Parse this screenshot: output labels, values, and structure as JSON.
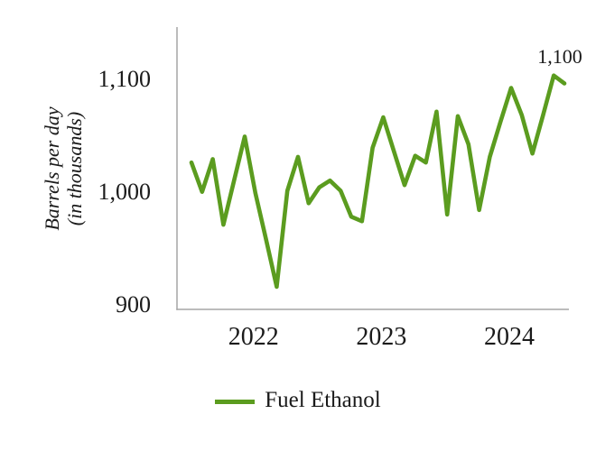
{
  "chart_data": {
    "type": "line",
    "title": "",
    "ylabel_lines": [
      "Barrels per day",
      "(in thousands)"
    ],
    "xlabel": "",
    "x": [
      "Jul 2021",
      "Aug 2021",
      "Sep 2021",
      "Oct 2021",
      "Nov 2021",
      "Dec 2021",
      "Jan 2022",
      "Feb 2022",
      "Mar 2022",
      "Apr 2022",
      "May 2022",
      "Jun 2022",
      "Jul 2022",
      "Aug 2022",
      "Sep 2022",
      "Oct 2022",
      "Nov 2022",
      "Dec 2022",
      "Jan 2023",
      "Feb 2023",
      "Mar 2023",
      "Apr 2023",
      "May 2023",
      "Jun 2023",
      "Jul 2023",
      "Aug 2023",
      "Sep 2023",
      "Oct 2023",
      "Nov 2023",
      "Dec 2023",
      "Jan 2024",
      "Feb 2024",
      "Mar 2024",
      "Apr 2024",
      "May 2024",
      "Jun 2024"
    ],
    "series": [
      {
        "name": "Fuel Ethanol",
        "color": "#5b9c1f",
        "values": [
          1030,
          1004,
          1033,
          975,
          1014,
          1053,
          1003,
          962,
          920,
          1005,
          1035,
          994,
          1008,
          1014,
          1005,
          982,
          978,
          1043,
          1070,
          1040,
          1010,
          1036,
          1030,
          1075,
          984,
          1071,
          1046,
          988,
          1035,
          1066,
          1096,
          1072,
          1038,
          1072,
          1107,
          1100
        ]
      }
    ],
    "ylim": [
      900,
      1150
    ],
    "yticks": {
      "values": [
        900,
        1000,
        1100
      ],
      "labels": [
        "900",
        "1,000",
        "1,100"
      ]
    },
    "xticks": [
      {
        "month_index": 6,
        "label": "2022"
      },
      {
        "month_index": 18,
        "label": "2023"
      },
      {
        "month_index": 30,
        "label": "2024"
      }
    ],
    "annotation": {
      "label": "1,100",
      "point_index": 35
    },
    "grid": false,
    "legend_position": "bottom",
    "axis_color": "#a6a6a6",
    "text_color": "#1a1a1a",
    "background": "#ffffff"
  },
  "legend": {
    "label": "Fuel Ethanol"
  }
}
